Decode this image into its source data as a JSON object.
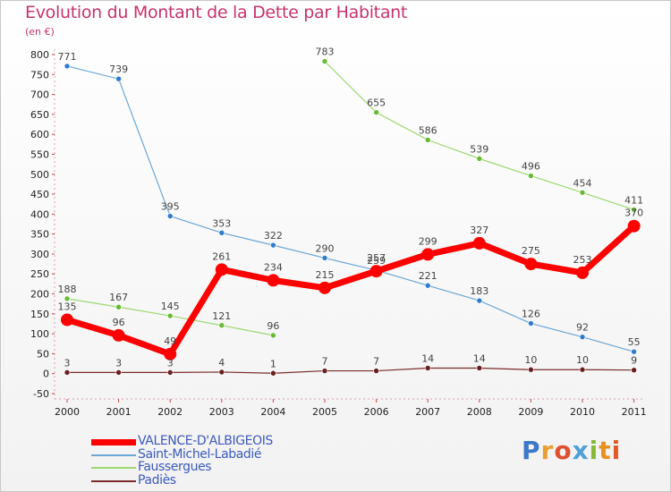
{
  "title": "Evolution du Montant de la Dette par Habitant",
  "subtitle": "(en €)",
  "logo": {
    "text": "Proxiti",
    "colors": [
      "#3c78c8",
      "#e8a030",
      "#e05030",
      "#50a0d8",
      "#88b838",
      "#e89020",
      "#e05a28"
    ]
  },
  "chart_data": {
    "type": "line",
    "title": "Evolution du Montant de la Dette par Habitant",
    "ylabel": "(en €)",
    "xlabel": "",
    "x": [
      "2000",
      "2001",
      "2002",
      "2003",
      "2004",
      "2005",
      "2006",
      "2007",
      "2008",
      "2009",
      "2010",
      "2011"
    ],
    "ylim": [
      -50,
      800
    ],
    "yticks": [
      -50,
      0,
      50,
      100,
      150,
      200,
      250,
      300,
      350,
      400,
      450,
      500,
      550,
      600,
      650,
      700,
      750,
      800
    ],
    "ytick_labels": [
      "-50",
      "0",
      "50",
      "100",
      "150",
      "200",
      "250",
      "300",
      "350",
      "400",
      "450",
      "500",
      "550",
      "600",
      "650",
      "700",
      "750",
      "800"
    ],
    "grid": false,
    "legend_position": "bottom-left",
    "series": [
      {
        "name": "VALENCE-D'ALBIGEOIS",
        "color": "#ff0000",
        "width": 7,
        "marker": 7,
        "values": [
          135,
          96,
          49,
          261,
          234,
          215,
          257,
          299,
          327,
          275,
          253,
          370
        ],
        "labels": [
          "135",
          "96",
          "49",
          "261",
          "234",
          "215",
          "257",
          "299",
          "327",
          "275",
          "253",
          "370"
        ]
      },
      {
        "name": "Saint-Michel-Labadié",
        "color": "#6ba7d6",
        "dot": "#2e7bd0",
        "width": 1.2,
        "marker": 3,
        "values": [
          771,
          739,
          395,
          353,
          322,
          290,
          259,
          221,
          183,
          126,
          92,
          55
        ],
        "labels": [
          "771",
          "739",
          "395",
          "353",
          "322",
          "290",
          "259",
          "221",
          "183",
          "126",
          "92",
          "55"
        ]
      },
      {
        "name": "Faussergues",
        "color": "#9fd870",
        "dot": "#66bb33",
        "width": 1.2,
        "marker": 3,
        "break_after": 4,
        "values": [
          188,
          167,
          145,
          121,
          96,
          783,
          655,
          586,
          539,
          496,
          454,
          411
        ],
        "labels": [
          "188",
          "167",
          "145",
          "121",
          "96",
          "783",
          "655",
          "586",
          "539",
          "496",
          "454",
          "411"
        ]
      },
      {
        "name": "Padiès",
        "color": "#7a2a2a",
        "dot": "#6a1f1f",
        "width": 1.2,
        "marker": 3,
        "values": [
          3,
          3,
          3,
          4,
          1,
          7,
          7,
          14,
          14,
          10,
          10,
          9
        ],
        "labels": [
          "3",
          "3",
          "3",
          "4",
          "1",
          "7",
          "7",
          "14",
          "14",
          "10",
          "10",
          "9"
        ]
      }
    ]
  }
}
